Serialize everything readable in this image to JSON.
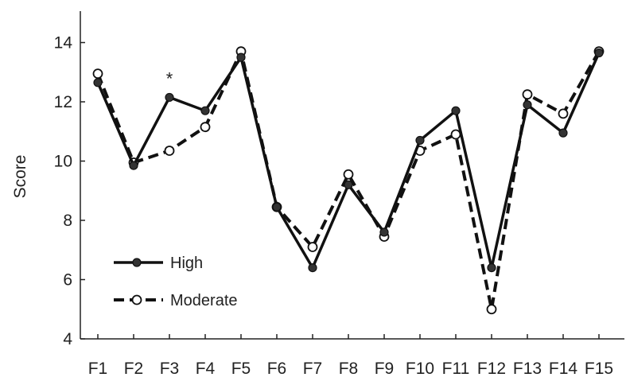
{
  "chart_data": {
    "type": "line",
    "title": "",
    "xlabel": "",
    "ylabel": "Score",
    "categories": [
      "F1",
      "F2",
      "F3",
      "F4",
      "F5",
      "F6",
      "F7",
      "F8",
      "F9",
      "F10",
      "F11",
      "F12",
      "F13",
      "F14",
      "F15"
    ],
    "ylim": [
      4,
      15
    ],
    "yticks": [
      4,
      6,
      8,
      10,
      12,
      14
    ],
    "grid": false,
    "legend_position": "bottom-left",
    "series": [
      {
        "name": "High",
        "style": "solid",
        "marker": "filled-circle",
        "color": "#111111",
        "values": [
          12.65,
          9.85,
          12.15,
          11.7,
          13.5,
          8.45,
          6.4,
          9.2,
          7.6,
          10.7,
          11.7,
          6.4,
          11.9,
          10.95,
          13.65
        ]
      },
      {
        "name": "Moderate",
        "style": "dashed",
        "marker": "open-circle",
        "color": "#111111",
        "values": [
          12.95,
          9.95,
          10.35,
          11.15,
          13.7,
          8.45,
          7.1,
          9.55,
          7.45,
          10.35,
          10.9,
          5.0,
          12.25,
          11.6,
          13.7
        ]
      }
    ],
    "annotations": [
      {
        "category": "F3",
        "text": "*",
        "y": 12.9
      }
    ]
  }
}
